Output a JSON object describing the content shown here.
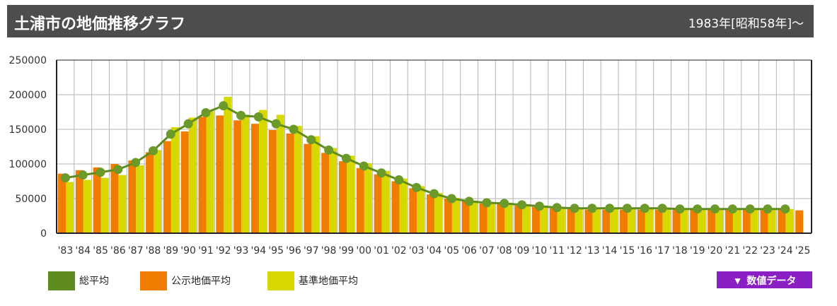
{
  "header": {
    "title": "土浦市の地価推移グラフ",
    "period": "1983年[昭和58年]～"
  },
  "legend": {
    "items": [
      {
        "label": "総平均",
        "color": "#5e8c1e"
      },
      {
        "label": "公示地価平均",
        "color": "#f07d00"
      },
      {
        "label": "基準地価平均",
        "color": "#d6d800"
      }
    ]
  },
  "data_button": {
    "label": "数値データ",
    "icon": "triangle-down-icon",
    "color": "#8a1fc4"
  },
  "chart_data": {
    "type": "bar",
    "ylim": [
      0,
      250000
    ],
    "yticks": [
      0,
      50000,
      100000,
      150000,
      200000,
      250000
    ],
    "grid": true,
    "categories": [
      "'83",
      "'84",
      "'85",
      "'86",
      "'87",
      "'88",
      "'89",
      "'90",
      "'91",
      "'92",
      "'93",
      "'94",
      "'95",
      "'96",
      "'97",
      "'98",
      "'99",
      "'00",
      "'01",
      "'02",
      "'03",
      "'04",
      "'05",
      "'06",
      "'07",
      "'08",
      "'09",
      "'10",
      "'11",
      "'12",
      "'13",
      "'14",
      "'15",
      "'16",
      "'17",
      "'18",
      "'19",
      "'20",
      "'21",
      "'22",
      "'23",
      "'24",
      "'25"
    ],
    "series": [
      {
        "name": "公示地価平均",
        "type": "bar",
        "color": "#f07d00",
        "values": [
          86000,
          91000,
          95000,
          100000,
          105000,
          117000,
          133000,
          147000,
          168000,
          170000,
          163000,
          158000,
          149000,
          144000,
          129000,
          116000,
          104000,
          94000,
          85000,
          75000,
          65000,
          56000,
          50000,
          46000,
          43000,
          42000,
          40000,
          38000,
          36000,
          35000,
          34000,
          34000,
          34000,
          34000,
          34000,
          34000,
          34000,
          34000,
          34000,
          34000,
          34000,
          34000,
          33000
        ]
      },
      {
        "name": "基準地価平均",
        "type": "bar",
        "color": "#d6d800",
        "values": [
          74000,
          77000,
          80000,
          84000,
          98000,
          120000,
          153000,
          167000,
          176000,
          197000,
          171000,
          178000,
          171000,
          155000,
          140000,
          123000,
          112000,
          101000,
          90000,
          79000,
          68000,
          58000,
          51000,
          47000,
          45000,
          44000,
          42000,
          40000,
          38000,
          36000,
          35000,
          35000,
          35000,
          35000,
          35000,
          35000,
          35000,
          35000,
          35000,
          35000,
          35000,
          35000,
          null
        ]
      },
      {
        "name": "総平均",
        "type": "line",
        "color": "#5e8c1e",
        "values": [
          80000,
          84000,
          88000,
          92000,
          102000,
          119000,
          143000,
          158000,
          174000,
          184000,
          170000,
          168000,
          158000,
          150000,
          135000,
          120000,
          108000,
          97000,
          87000,
          77000,
          66000,
          57000,
          50000,
          46000,
          44000,
          43000,
          41000,
          39000,
          37000,
          36000,
          36000,
          36000,
          36000,
          36000,
          36000,
          35000,
          35000,
          35000,
          35000,
          35000,
          35000,
          35000,
          null
        ]
      }
    ]
  }
}
